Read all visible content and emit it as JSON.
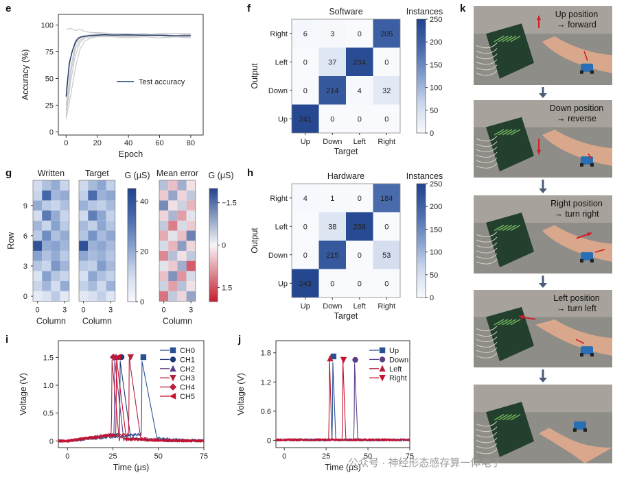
{
  "panel_labels": {
    "e": "e",
    "f": "f",
    "g": "g",
    "h": "h",
    "i": "i",
    "j": "j",
    "k": "k"
  },
  "watermark": "公众号 · 神经形态感存算一体电子",
  "colors": {
    "blue": "#2b4f93",
    "navy": "#1f3a70",
    "purple": "#5a3f86",
    "crimson": "#b81f3a",
    "red": "#c8102e",
    "grey": "#c8c8c8"
  },
  "chart_data": [
    {
      "id": "e",
      "type": "line",
      "xlabel": "Epoch",
      "ylabel": "Accuracy (%)",
      "xlim": [
        -5,
        88
      ],
      "ylim": [
        -3,
        110
      ],
      "xticks": [
        "0",
        "20",
        "40",
        "60",
        "80"
      ],
      "yticks": [
        "0",
        "25",
        "50",
        "75",
        "100"
      ],
      "xtick_values": [
        0,
        20,
        40,
        60,
        80
      ],
      "ytick_values": [
        0,
        25,
        50,
        75,
        100
      ],
      "legend": [
        "Test accuracy"
      ],
      "series": [
        {
          "name": "Test accuracy",
          "x": [
            0,
            2,
            4,
            6,
            8,
            10,
            12,
            15,
            20,
            25,
            30,
            40,
            50,
            60,
            70,
            80
          ],
          "y": [
            33,
            64,
            76,
            84,
            88,
            89,
            89.5,
            90,
            90.5,
            91,
            90.6,
            90.8,
            90.5,
            90.4,
            90,
            90
          ]
        }
      ],
      "grey_runs": [
        {
          "x": [
            0,
            3,
            6,
            9,
            12,
            16,
            20,
            30,
            40,
            50,
            60,
            70,
            80
          ],
          "y": [
            12,
            35,
            60,
            78,
            85,
            88,
            89,
            89,
            88,
            89,
            88,
            89,
            88
          ]
        },
        {
          "x": [
            0,
            3,
            6,
            9,
            12,
            16,
            20,
            30,
            40,
            50,
            60,
            70,
            80
          ],
          "y": [
            15,
            48,
            72,
            84,
            88,
            89,
            90,
            90,
            89,
            90,
            90,
            89,
            89
          ]
        },
        {
          "x": [
            0,
            3,
            6,
            9,
            12,
            16,
            20,
            30,
            40,
            50,
            60,
            70,
            80
          ],
          "y": [
            20,
            55,
            78,
            86,
            89,
            90,
            90,
            91,
            90,
            90,
            91,
            90,
            90
          ]
        },
        {
          "x": [
            0,
            3,
            6,
            9,
            12,
            16,
            20,
            30,
            40,
            50,
            60,
            70,
            80
          ],
          "y": [
            25,
            60,
            82,
            88,
            90,
            91,
            92,
            92,
            91,
            92,
            91,
            92,
            91
          ]
        },
        {
          "x": [
            0,
            3,
            6,
            9,
            12,
            16,
            20,
            30,
            40,
            50,
            60,
            70,
            80
          ],
          "y": [
            96,
            97,
            95,
            96,
            94,
            93,
            93,
            92,
            92,
            91,
            92,
            92,
            92
          ]
        },
        {
          "x": [
            0,
            3,
            6,
            9,
            12,
            16,
            20,
            30,
            40,
            50,
            60,
            70,
            80
          ],
          "y": [
            40,
            70,
            86,
            89,
            90,
            91,
            91,
            91,
            90,
            91,
            90,
            90,
            91
          ]
        }
      ]
    },
    {
      "id": "f",
      "type": "heatmap",
      "title": "Software",
      "xlabel": "Target",
      "ylabel": "Output",
      "x_categories": [
        "Up",
        "Down",
        "Left",
        "Right"
      ],
      "y_categories": [
        "Right",
        "Left",
        "Down",
        "Up"
      ],
      "values": [
        [
          6,
          3,
          0,
          205
        ],
        [
          0,
          37,
          234,
          0
        ],
        [
          0,
          214,
          4,
          32
        ],
        [
          241,
          0,
          0,
          0
        ]
      ],
      "value_labels": [
        [
          "6",
          "3",
          "0",
          "205"
        ],
        [
          "0",
          "37",
          "234",
          "0"
        ],
        [
          "0",
          "214",
          "4",
          "32"
        ],
        [
          "241",
          "0",
          "0",
          "0"
        ]
      ],
      "colorbar_label": "Instances",
      "colorbar_ticks": [
        "0",
        "50",
        "100",
        "150",
        "200",
        "250"
      ],
      "colorbar_range": [
        0,
        250
      ]
    },
    {
      "id": "h",
      "type": "heatmap",
      "title": "Hardware",
      "xlabel": "Target",
      "ylabel": "Output",
      "x_categories": [
        "Up",
        "Down",
        "Left",
        "Right"
      ],
      "y_categories": [
        "Right",
        "Left",
        "Down",
        "Up"
      ],
      "values": [
        [
          4,
          1,
          0,
          184
        ],
        [
          0,
          38,
          238,
          0
        ],
        [
          0,
          215,
          0,
          53
        ],
        [
          243,
          0,
          0,
          0
        ]
      ],
      "value_labels": [
        [
          "4",
          "1",
          "0",
          "184"
        ],
        [
          "0",
          "38",
          "238",
          "0"
        ],
        [
          "0",
          "215",
          "0",
          "53"
        ],
        [
          "243",
          "0",
          "0",
          "0"
        ]
      ],
      "colorbar_label": "Instances",
      "colorbar_ticks": [
        "0",
        "50",
        "100",
        "150",
        "200",
        "250"
      ],
      "colorbar_range": [
        0,
        250
      ]
    },
    {
      "id": "g",
      "type": "heatmap",
      "titles": [
        "Written",
        "Target",
        "Mean error"
      ],
      "xlabel": "Column",
      "ylabel": "Row",
      "xticks": [
        "0",
        "3"
      ],
      "yticks": [
        "0",
        "3",
        "6",
        "9"
      ],
      "colorbar1_label": "G (μS)",
      "colorbar1_ticks": [
        "0",
        "20",
        "40"
      ],
      "colorbar1_range": [
        0,
        45
      ],
      "colorbar2_label": "G (μS)",
      "colorbar2_ticks": [
        "−1.5",
        "0",
        "1.5"
      ],
      "colorbar2_range": [
        -2,
        2
      ],
      "written": [
        [
          5,
          8,
          14,
          6
        ],
        [
          12,
          18,
          10,
          20
        ],
        [
          8,
          22,
          15,
          12
        ],
        [
          15,
          12,
          24,
          18
        ],
        [
          22,
          16,
          20,
          14
        ],
        [
          40,
          20,
          22,
          18
        ],
        [
          14,
          26,
          16,
          20
        ],
        [
          18,
          12,
          22,
          14
        ],
        [
          10,
          30,
          20,
          12
        ],
        [
          20,
          14,
          12,
          16
        ],
        [
          12,
          34,
          18,
          20
        ],
        [
          10,
          16,
          20,
          12
        ]
      ],
      "target": [
        [
          6,
          9,
          13,
          7
        ],
        [
          13,
          17,
          11,
          19
        ],
        [
          9,
          21,
          16,
          13
        ],
        [
          14,
          13,
          23,
          17
        ],
        [
          21,
          17,
          19,
          15
        ],
        [
          41,
          19,
          21,
          17
        ],
        [
          15,
          25,
          17,
          21
        ],
        [
          17,
          13,
          21,
          15
        ],
        [
          11,
          29,
          21,
          13
        ],
        [
          19,
          15,
          13,
          17
        ],
        [
          13,
          33,
          19,
          21
        ],
        [
          11,
          17,
          21,
          13
        ]
      ],
      "mean_error": [
        [
          -1.2,
          0.5,
          -0.3,
          0.9
        ],
        [
          0.4,
          -0.8,
          0.6,
          -0.2
        ],
        [
          -0.5,
          1.1,
          -0.9,
          0.3
        ],
        [
          0.2,
          -0.4,
          0.8,
          -1.4
        ],
        [
          -1.0,
          0.6,
          -0.2,
          0.5
        ],
        [
          0.3,
          -0.6,
          1.0,
          -0.3
        ],
        [
          -0.7,
          0.2,
          -0.5,
          1.3
        ],
        [
          0.5,
          -1.1,
          0.3,
          -0.4
        ],
        [
          -0.3,
          0.7,
          -0.8,
          0.2
        ],
        [
          1.2,
          -0.2,
          0.4,
          -0.6
        ],
        [
          -0.4,
          0.9,
          -0.3,
          0.5
        ],
        [
          0.6,
          -0.5,
          0.8,
          -0.2
        ]
      ]
    },
    {
      "id": "i",
      "type": "line",
      "xlabel": "Time (μs)",
      "ylabel": "Voltage (V)",
      "xticks": [
        "0",
        "25",
        "50",
        "75"
      ],
      "xtick_values": [
        0,
        25,
        50,
        75
      ],
      "yticks": [
        "0",
        "0.5",
        "1.0",
        "1.5"
      ],
      "ytick_values": [
        0,
        0.5,
        1.0,
        1.5
      ],
      "xlim": [
        -5,
        75
      ],
      "ylim": [
        -0.12,
        1.8
      ],
      "series": [
        {
          "name": "CH0",
          "marker": "square",
          "peak_t": 41,
          "peak_v": 1.43,
          "fall": 8.5
        },
        {
          "name": "CH1",
          "marker": "circle",
          "peak_t": 29,
          "peak_v": 1.43,
          "fall": 6
        },
        {
          "name": "CH2",
          "marker": "triangle",
          "peak_t": 26,
          "peak_v": 1.45,
          "fall": 5
        },
        {
          "name": "CH3",
          "marker": "triangle-down",
          "peak_t": 34,
          "peak_v": 1.48,
          "fall": 6.5
        },
        {
          "name": "CH4",
          "marker": "diamond",
          "peak_t": 24.5,
          "peak_v": 1.45,
          "fall": 4
        },
        {
          "name": "CH5",
          "marker": "triangle-left",
          "peak_t": 27,
          "peak_v": 1.48,
          "fall": 5.5
        }
      ]
    },
    {
      "id": "j",
      "type": "line",
      "xlabel": "Time (μs)",
      "ylabel": "Voltage (V)",
      "xticks": [
        "0",
        "25",
        "50",
        "75"
      ],
      "xtick_values": [
        0,
        25,
        50,
        75
      ],
      "yticks": [
        "0",
        "0.6",
        "1.2",
        "1.8"
      ],
      "ytick_values": [
        0,
        0.6,
        1.2,
        1.8
      ],
      "xlim": [
        -5,
        75
      ],
      "ylim": [
        -0.15,
        2.05
      ],
      "series": [
        {
          "name": "Up",
          "marker": "square",
          "peak_t": 29,
          "peak_v": 1.6,
          "fall": 1.8
        },
        {
          "name": "Down",
          "marker": "circle",
          "peak_t": 42,
          "peak_v": 1.58,
          "fall": 2.0
        },
        {
          "name": "Left",
          "marker": "triangle",
          "peak_t": 27,
          "peak_v": 1.72,
          "fall": 1.5
        },
        {
          "name": "Right",
          "marker": "triangle-down",
          "peak_t": 35,
          "peak_v": 1.68,
          "fall": 1.8
        }
      ]
    }
  ],
  "photos": {
    "captions": [
      [
        "Up position",
        "→ forward"
      ],
      [
        "Down position",
        "→ reverse"
      ],
      [
        "Right position",
        "→ turn right"
      ],
      [
        "Left position",
        "→ turn left"
      ]
    ]
  }
}
